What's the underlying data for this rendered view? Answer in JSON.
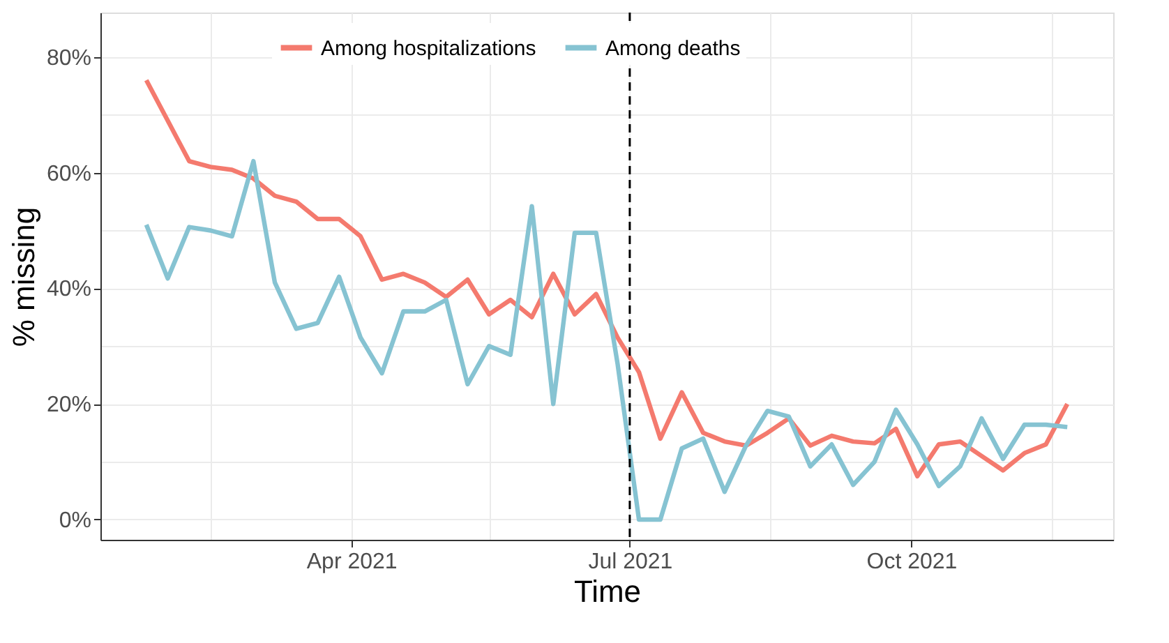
{
  "chart_data": {
    "type": "line",
    "xlabel": "Time",
    "ylabel": "% missing",
    "x": [
      "2021-01-24",
      "2021-01-31",
      "2021-02-07",
      "2021-02-14",
      "2021-02-21",
      "2021-02-28",
      "2021-03-07",
      "2021-03-14",
      "2021-03-21",
      "2021-03-28",
      "2021-04-04",
      "2021-04-11",
      "2021-04-18",
      "2021-04-25",
      "2021-05-02",
      "2021-05-09",
      "2021-05-16",
      "2021-05-23",
      "2021-05-30",
      "2021-06-06",
      "2021-06-13",
      "2021-06-20",
      "2021-06-27",
      "2021-07-04",
      "2021-07-11",
      "2021-07-18",
      "2021-07-25",
      "2021-08-01",
      "2021-08-08",
      "2021-08-15",
      "2021-08-22",
      "2021-08-29",
      "2021-09-05",
      "2021-09-12",
      "2021-09-19",
      "2021-09-26",
      "2021-10-03",
      "2021-10-10",
      "2021-10-17",
      "2021-10-24",
      "2021-10-31",
      "2021-11-07",
      "2021-11-14",
      "2021-11-21"
    ],
    "series": [
      {
        "name": "Among hospitalizations",
        "color": "#f47a6e",
        "values": [
          76,
          69,
          62,
          61,
          60.5,
          59,
          56,
          55,
          52,
          52,
          49,
          41.5,
          42.5,
          41,
          38.5,
          41.5,
          35.5,
          38,
          35,
          42.5,
          35.5,
          39,
          31.5,
          25.5,
          14,
          22,
          15,
          13.5,
          12.8,
          15,
          17.5,
          12.8,
          14.5,
          13.5,
          13.2,
          15.7,
          7.5,
          13,
          13.5,
          11,
          8.5,
          11.5,
          13,
          20
        ]
      },
      {
        "name": "Among deaths",
        "color": "#86c3d2",
        "values": [
          51,
          41.7,
          50.6,
          50,
          49,
          62,
          41,
          33,
          34,
          42,
          31.5,
          25.3,
          36,
          36,
          38,
          23.4,
          30,
          28.5,
          54.2,
          20,
          49.6,
          49.6,
          27,
          0,
          0,
          12.3,
          14,
          4.8,
          12.8,
          18.8,
          17.8,
          9.2,
          13,
          6,
          10,
          19,
          13,
          5.8,
          9.2,
          17.5,
          10.5,
          16.4,
          16.4,
          16
        ]
      }
    ],
    "xlim": [
      "2021-01-09",
      "2021-12-06"
    ],
    "xticks": [
      {
        "value": "2021-02-14",
        "label": null
      },
      {
        "value": "2021-04-01",
        "label": "Apr 2021"
      },
      {
        "value": "2021-05-16",
        "label": null
      },
      {
        "value": "2021-07-01",
        "label": "Jul 2021"
      },
      {
        "value": "2021-08-16",
        "label": null
      },
      {
        "value": "2021-10-01",
        "label": "Oct 2021"
      },
      {
        "value": "2021-11-16",
        "label": null
      }
    ],
    "ylim": [
      -3.5,
      87.7
    ],
    "yticks": [
      {
        "value": 0,
        "label": "0%"
      },
      {
        "value": 10,
        "label": null
      },
      {
        "value": 20,
        "label": "20%"
      },
      {
        "value": 30,
        "label": null
      },
      {
        "value": 40,
        "label": "40%"
      },
      {
        "value": 50,
        "label": null
      },
      {
        "value": 60,
        "label": "60%"
      },
      {
        "value": 70,
        "label": null
      },
      {
        "value": 80,
        "label": "80%"
      }
    ],
    "ref_lines": [
      {
        "axis": "x",
        "value": "2021-07-01",
        "color": "#000000",
        "line_style": "dashed"
      }
    ],
    "grid": true,
    "legend": "top",
    "line_style": "solid",
    "marker": "none"
  }
}
